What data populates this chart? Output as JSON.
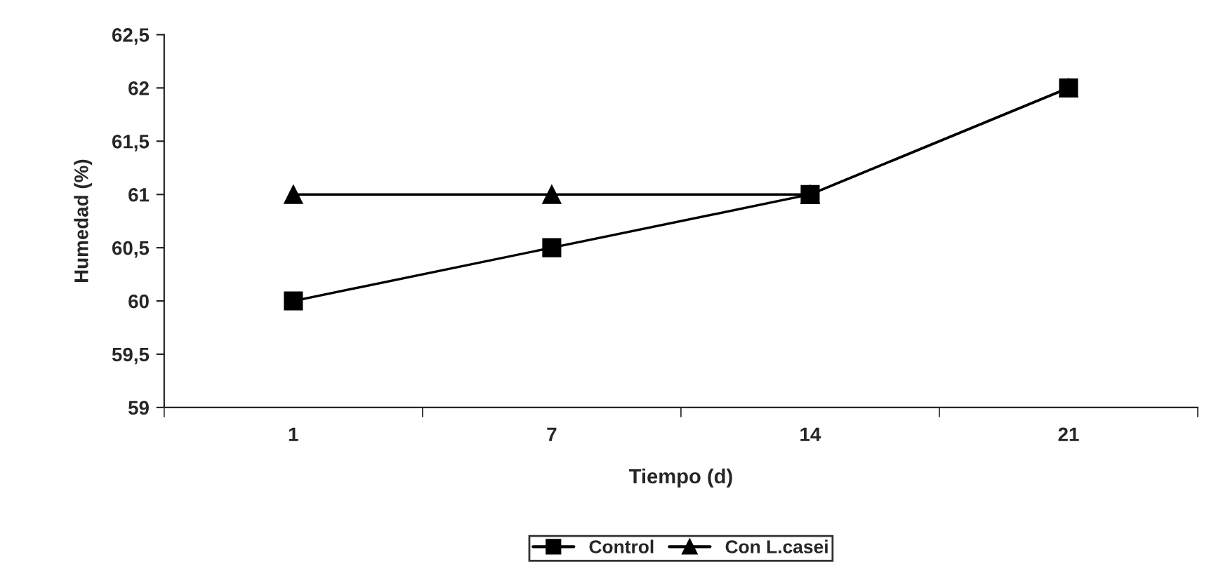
{
  "chart_data": {
    "type": "line",
    "xlabel": "Tiempo (d)",
    "ylabel": "Humedad (%)",
    "categories": [
      "1",
      "7",
      "14",
      "21"
    ],
    "series": [
      {
        "name": "Control",
        "color": "#000000",
        "marker": "square",
        "values": [
          60,
          60.5,
          61,
          62
        ]
      },
      {
        "name": "Con L.casei",
        "color": "#000000",
        "marker": "triangle",
        "values": [
          61,
          61,
          61,
          62
        ]
      }
    ],
    "ylim": [
      59,
      62.5
    ],
    "yticks": [
      59,
      {
        "value": 59.5,
        "label": "59,5"
      },
      60,
      {
        "value": 60.5,
        "label": "60,5"
      },
      61,
      {
        "value": 61.5,
        "label": "61,5"
      },
      62,
      {
        "value": 62.5,
        "label": "62,5"
      }
    ],
    "grid": false,
    "legend": "bottom",
    "line_style": "solid"
  }
}
